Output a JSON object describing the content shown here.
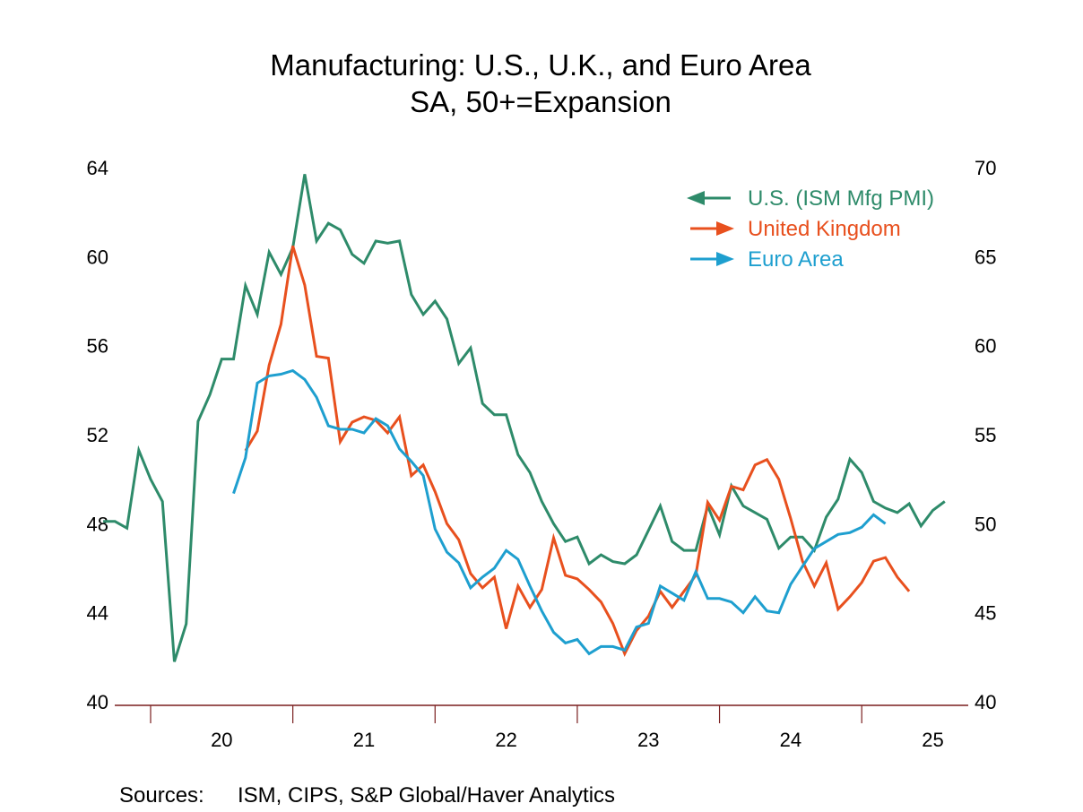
{
  "chart_data": {
    "type": "line",
    "title": "Manufacturing: U.S., U.K., and Euro Area",
    "subtitle": "SA, 50+=Expansion",
    "xlabel": "",
    "ylabel_left": "",
    "ylabel_right": "",
    "frequency": "monthly",
    "x_tick_labels": [
      "20",
      "21",
      "22",
      "23",
      "24",
      "25"
    ],
    "left_axis": {
      "ylim": [
        40,
        64
      ],
      "ticks": [
        "40",
        "44",
        "48",
        "52",
        "56",
        "60",
        "64"
      ]
    },
    "right_axis": {
      "ylim": [
        40,
        70
      ],
      "ticks": [
        "40",
        "45",
        "50",
        "55",
        "60",
        "65",
        "70"
      ]
    },
    "grid": false,
    "legend_position": "top-right",
    "series": [
      {
        "name": "U.S. (ISM Mfg PMI)",
        "axis": "left",
        "color": "#2e8b6a",
        "legend_arrow": "left",
        "start": "2019-09",
        "values": [
          48.1,
          48.1,
          47.8,
          51.3,
          50.0,
          49.0,
          41.8,
          43.5,
          52.6,
          53.8,
          55.4,
          55.4,
          58.7,
          57.4,
          60.2,
          59.2,
          60.4,
          63.7,
          60.7,
          61.5,
          61.2,
          60.1,
          59.7,
          60.7,
          60.6,
          60.7,
          58.3,
          57.4,
          58.0,
          57.2,
          55.2,
          55.9,
          53.4,
          52.9,
          52.9,
          51.1,
          50.3,
          49.0,
          48.0,
          47.2,
          47.4,
          46.2,
          46.6,
          46.3,
          46.2,
          46.6,
          47.7,
          48.8,
          47.2,
          46.8,
          46.8,
          48.8,
          47.5,
          49.7,
          48.8,
          48.5,
          48.2,
          46.9,
          47.4,
          47.4,
          46.8,
          48.3,
          49.1,
          50.9,
          50.3,
          49.0,
          48.7,
          48.5,
          48.9,
          47.9,
          48.6,
          49.0
        ]
      },
      {
        "name": "United Kingdom",
        "axis": "right",
        "color": "#e8501e",
        "legend_arrow": "right",
        "start": "2020-09",
        "values": [
          54.1,
          55.2,
          58.9,
          61.2,
          65.6,
          63.4,
          59.4,
          59.3,
          54.6,
          55.7,
          56.0,
          55.8,
          55.1,
          56.0,
          52.7,
          53.3,
          51.8,
          50.0,
          49.1,
          47.2,
          46.4,
          47.0,
          44.1,
          46.5,
          45.3,
          46.3,
          49.2,
          47.1,
          46.9,
          46.3,
          45.6,
          44.4,
          42.7,
          44.0,
          44.8,
          46.2,
          45.3,
          46.2,
          47.1,
          51.2,
          50.2,
          52.1,
          51.9,
          53.3,
          53.6,
          52.5,
          50.3,
          47.9,
          46.5,
          47.8,
          45.2,
          45.9,
          46.7,
          47.9,
          48.1,
          47.0,
          46.2
        ]
      },
      {
        "name": "Euro Area",
        "axis": "right",
        "color": "#1e9fcf",
        "legend_arrow": "right",
        "start": "2020-08",
        "values": [
          51.7,
          53.7,
          57.9,
          58.3,
          58.4,
          58.6,
          58.1,
          57.1,
          55.5,
          55.3,
          55.3,
          55.1,
          55.9,
          55.5,
          54.2,
          53.5,
          52.7,
          49.7,
          48.4,
          47.8,
          46.4,
          47.0,
          47.5,
          48.5,
          48.0,
          46.5,
          45.1,
          43.9,
          43.3,
          43.5,
          42.7,
          43.1,
          43.1,
          42.9,
          44.2,
          44.4,
          46.5,
          46.1,
          45.7,
          47.3,
          45.8,
          45.8,
          45.6,
          45.0,
          45.9,
          45.1,
          45.0,
          46.6,
          47.6,
          48.6,
          49.0,
          49.4,
          49.5,
          49.8,
          50.5,
          50.0
        ]
      }
    ],
    "source_label": "Sources:",
    "source_text": "ISM, CIPS, S&P Global/Haver Analytics"
  }
}
